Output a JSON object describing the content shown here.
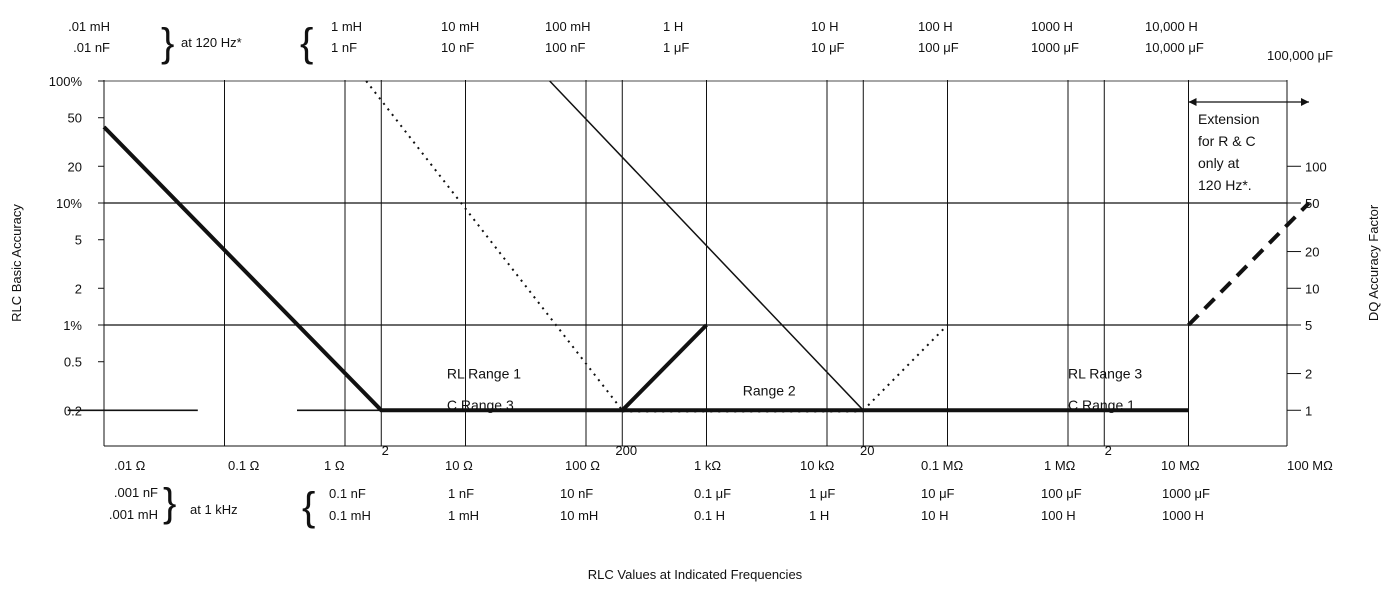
{
  "chart_data": {
    "type": "line",
    "x_scale": "log-decades",
    "y_scale": "log",
    "grid": true,
    "ylabel": "RLC Basic Accuracy",
    "y2label": "DQ Accuracy Factor",
    "xlabel": "RLC Values at Indicated Frequencies",
    "top_axis": {
      "bracket_left": [
        ".01 mH",
        ".01 nF"
      ],
      "condition": "at 120 Hz*",
      "columns": [
        [
          "1 mH",
          "1 nF"
        ],
        [
          "10 mH",
          "10 nF"
        ],
        [
          "100 mH",
          "100 nF"
        ],
        [
          "1 H",
          "1 μF"
        ],
        [
          "10 H",
          "10 μF"
        ],
        [
          "100 H",
          "100 μF"
        ],
        [
          "1000 H",
          "1000 μF"
        ],
        [
          "10,000 H",
          "10,000 μF"
        ],
        [
          "",
          "100,000 μF"
        ]
      ]
    },
    "bottom_axis": {
      "ohms": [
        ".01 Ω",
        "0.1 Ω",
        "1 Ω",
        "10 Ω",
        "100 Ω",
        "1 kΩ",
        "10 kΩ",
        "0.1 MΩ",
        "1 MΩ",
        "10 MΩ",
        "100 MΩ"
      ],
      "bracket_left": [
        ".001 nF",
        ".001 mH"
      ],
      "condition": "at 1 kHz",
      "columns": [
        [
          "0.1 nF",
          "0.1 mH"
        ],
        [
          "1 nF",
          "1 mH"
        ],
        [
          "10 nF",
          "10 mH"
        ],
        [
          "0.1 μF",
          "0.1 H"
        ],
        [
          "1 μF",
          "1 H"
        ],
        [
          "10 μF",
          "10 H"
        ],
        [
          "100 μF",
          "100 H"
        ],
        [
          "1000 μF",
          "1000 H"
        ]
      ],
      "range_marks": [
        {
          "label": "2",
          "x": 2
        },
        {
          "label": "200",
          "x": 200
        },
        {
          "label": "20",
          "x": 20000
        },
        {
          "label": "2",
          "x": 2000000
        }
      ]
    },
    "y_ticks": [
      {
        "v": 100,
        "label": "100%"
      },
      {
        "v": 50,
        "label": "50"
      },
      {
        "v": 20,
        "label": "20"
      },
      {
        "v": 10,
        "label": "10%"
      },
      {
        "v": 5,
        "label": "5"
      },
      {
        "v": 2,
        "label": "2"
      },
      {
        "v": 1,
        "label": "1%"
      },
      {
        "v": 0.5,
        "label": "0.5"
      },
      {
        "v": 0.2,
        "label": "0.2"
      }
    ],
    "y2_ticks": [
      {
        "v": 20,
        "label": "100"
      },
      {
        "v": 10,
        "label": "50"
      },
      {
        "v": 4,
        "label": "20"
      },
      {
        "v": 2,
        "label": "10"
      },
      {
        "v": 1,
        "label": "5"
      },
      {
        "v": 0.4,
        "label": "2"
      },
      {
        "v": 0.2,
        "label": "1"
      }
    ],
    "ylim": [
      0.1,
      100
    ],
    "xlim_ohms": [
      0.01,
      100000000
    ],
    "series": [
      {
        "style": "thick",
        "points": [
          [
            0.01,
            42
          ],
          [
            2,
            0.2
          ],
          [
            10000000,
            0.2
          ]
        ]
      },
      {
        "style": "thick",
        "points": [
          [
            200,
            0.2
          ],
          [
            1000,
            1
          ]
        ]
      },
      {
        "style": "thick",
        "points": [
          [
            10000000,
            1
          ],
          [
            100000000,
            10
          ]
        ],
        "dashed": true
      },
      {
        "style": "thin",
        "points": [
          [
            50,
            100
          ],
          [
            20000,
            0.2
          ]
        ]
      },
      {
        "style": "dotted",
        "points": [
          [
            1.5,
            100
          ],
          [
            200,
            0.2
          ],
          [
            20000,
            0.2
          ],
          [
            100000,
            1
          ]
        ]
      },
      {
        "style": "dash-thick",
        "points": [
          [
            0.005,
            0.2
          ],
          [
            0.06,
            0.2
          ]
        ]
      },
      {
        "style": "dash-thick",
        "points": [
          [
            0.4,
            0.2
          ],
          [
            4,
            0.2
          ]
        ]
      }
    ],
    "annotations": [
      {
        "lines": [
          "RL Range 1",
          "C Range 3"
        ],
        "x": 7,
        "y": [
          0.4,
          0.22
        ]
      },
      {
        "lines": [
          "Range 2"
        ],
        "x": 2000,
        "y": [
          0.29
        ]
      },
      {
        "lines": [
          "RL Range 3",
          "C Range 1"
        ],
        "x": 1000000,
        "y": [
          0.4,
          0.22
        ]
      }
    ],
    "extension": {
      "lines": [
        "Extension",
        "for R & C",
        "only at",
        "120 Hz*."
      ],
      "from": 10000000,
      "to": 100000000
    }
  }
}
